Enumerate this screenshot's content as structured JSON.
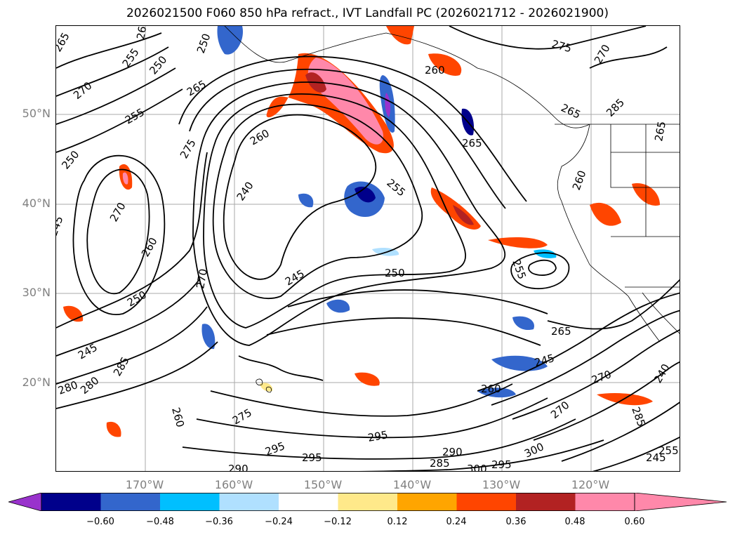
{
  "title": "2026021500 F060 850 hPa refract., IVT Landfall PC (2026021712 - 2026021900)",
  "map": {
    "lat_labels": [
      "50°N",
      "40°N",
      "30°N",
      "20°N"
    ],
    "lon_labels": [
      "170°W",
      "160°W",
      "150°W",
      "140°W",
      "130°W",
      "120°W"
    ],
    "contour_labels": [
      "265",
      "260",
      "255",
      "250",
      "265",
      "270",
      "255",
      "250",
      "275",
      "250",
      "245",
      "260",
      "270",
      "240",
      "260",
      "270",
      "255",
      "245",
      "250",
      "260",
      "265",
      "275",
      "270",
      "265",
      "285",
      "265",
      "255",
      "250",
      "245",
      "265",
      "245",
      "285",
      "280",
      "280",
      "260",
      "275",
      "290",
      "295",
      "295",
      "295",
      "290",
      "285",
      "300",
      "295",
      "300",
      "270",
      "260",
      "270",
      "285",
      "240",
      "245",
      "255",
      "260"
    ]
  },
  "colorbar": {
    "tick_labels": [
      "−0.60",
      "−0.48",
      "−0.36",
      "−0.24",
      "−0.12",
      "0.12",
      "0.24",
      "0.36",
      "0.48",
      "0.60"
    ],
    "colors": [
      "#9932cc",
      "#00008b",
      "#3366cc",
      "#00bfff",
      "#b0e0ff",
      "#ffffff",
      "#ffe98a",
      "#ffa500",
      "#ff4500",
      "#b22222",
      "#ff88aa"
    ]
  }
}
